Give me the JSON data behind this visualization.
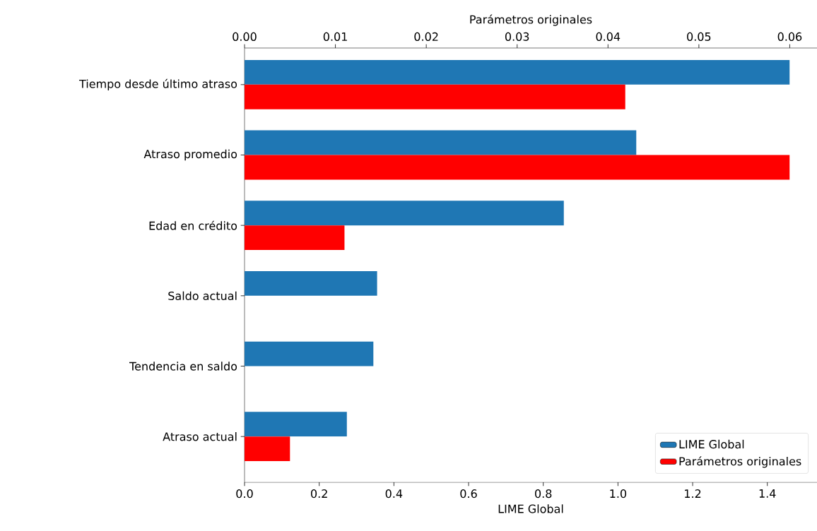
{
  "chart_data": {
    "type": "bar",
    "orientation": "horizontal",
    "categories": [
      "Tiempo desde último atraso",
      "Atraso promedio",
      "Edad en crédito",
      "Saldo actual",
      "Tendencia en saldo",
      "Atraso actual"
    ],
    "series": [
      {
        "name": "LIME Global",
        "color": "#1f77b4",
        "values": [
          1.46,
          1.049,
          0.855,
          0.355,
          0.345,
          0.274
        ]
      },
      {
        "name": "Parámetros originales",
        "color": "#ff0000",
        "axis": "x2",
        "values": [
          0.0419,
          0.06,
          0.011,
          0,
          0,
          0.005
        ]
      }
    ],
    "xlabel": "LIME Global",
    "x2label": "Parámetros originales",
    "xlim": [
      0,
      1.533
    ],
    "x2lim": [
      0,
      0.063
    ],
    "xticks": [
      {
        "value": 0,
        "label": "0.0"
      },
      {
        "value": 0.2,
        "label": "0.2"
      },
      {
        "value": 0.4,
        "label": "0.4"
      },
      {
        "value": 0.6,
        "label": "0.6"
      },
      {
        "value": 0.8,
        "label": "0.8"
      },
      {
        "value": 1.0,
        "label": "1.0"
      },
      {
        "value": 1.2,
        "label": "1.2"
      },
      {
        "value": 1.4,
        "label": "1.4"
      }
    ],
    "x2ticks": [
      {
        "value": 0,
        "label": "0.00"
      },
      {
        "value": 0.01,
        "label": "0.01"
      },
      {
        "value": 0.02,
        "label": "0.02"
      },
      {
        "value": 0.03,
        "label": "0.03"
      },
      {
        "value": 0.04,
        "label": "0.04"
      },
      {
        "value": 0.05,
        "label": "0.05"
      },
      {
        "value": 0.06,
        "label": "0.06"
      }
    ],
    "legend": "bottom right",
    "grid": false
  }
}
